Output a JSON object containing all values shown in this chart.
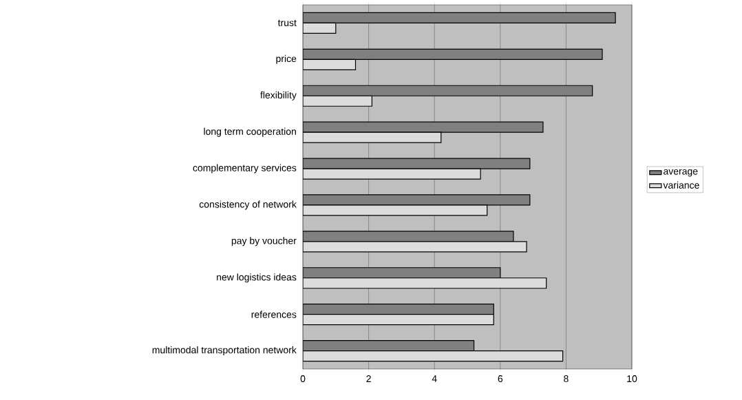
{
  "chart_data": {
    "type": "bar",
    "orientation": "horizontal",
    "categories": [
      "trust",
      "price",
      "flexibility",
      "long term cooperation",
      "complementary services",
      "consistency of network",
      "pay by voucher",
      "new logistics ideas",
      "references",
      "multimodal transportation network"
    ],
    "series": [
      {
        "name": "average",
        "color": "#808080",
        "values": [
          9.5,
          9.1,
          8.8,
          7.3,
          6.9,
          6.9,
          6.4,
          6.0,
          5.8,
          5.2
        ]
      },
      {
        "name": "variance",
        "color": "#dcdcdc",
        "values": [
          1.0,
          1.6,
          2.1,
          4.2,
          5.4,
          5.6,
          6.8,
          7.4,
          5.8,
          7.9
        ]
      }
    ],
    "xlim": [
      0,
      10
    ],
    "xticks": [
      0,
      2,
      4,
      6,
      8,
      10
    ],
    "grid": "x",
    "legend": "right"
  }
}
